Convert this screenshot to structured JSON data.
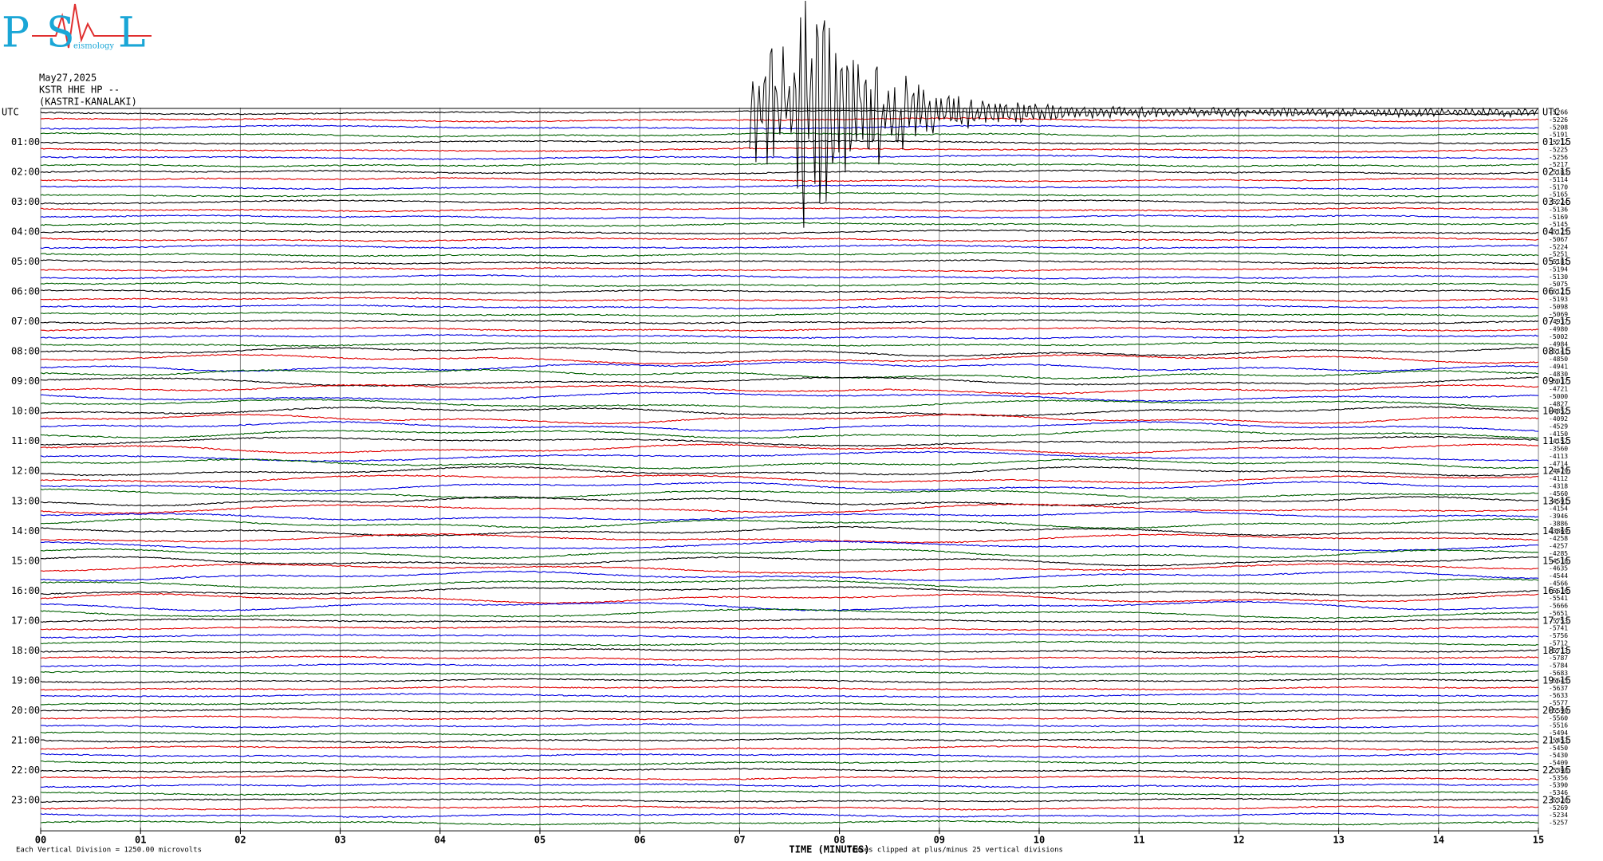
{
  "logo": {
    "letters": [
      "P",
      "S",
      "L"
    ],
    "caption": "eismology"
  },
  "header": {
    "date": "May27,2025",
    "channel": "KSTR HHE HP --",
    "station": "(KASTRI-KANALAKI)"
  },
  "chart_data": {
    "type": "helicorder",
    "xlabel": "TIME (MINUTES)",
    "scale_note": "Each Vertical Division = 1250.00 microvolts",
    "clip_note": "Traces clipped at plus/minus 25 vertical divisions",
    "xlim": [
      0,
      15
    ],
    "xticks": [
      {
        "value": 0,
        "label": "00"
      },
      {
        "value": 1,
        "label": "01"
      },
      {
        "value": 2,
        "label": "02"
      },
      {
        "value": 3,
        "label": "03"
      },
      {
        "value": 4,
        "label": "04"
      },
      {
        "value": 5,
        "label": "05"
      },
      {
        "value": 6,
        "label": "06"
      },
      {
        "value": 7,
        "label": "07"
      },
      {
        "value": 8,
        "label": "08"
      },
      {
        "value": 9,
        "label": "09"
      },
      {
        "value": 10,
        "label": "10"
      },
      {
        "value": 11,
        "label": "11"
      },
      {
        "value": 12,
        "label": "12"
      },
      {
        "value": 13,
        "label": "13"
      },
      {
        "value": 14,
        "label": "14"
      },
      {
        "value": 15,
        "label": "15"
      }
    ],
    "grid": true,
    "trace_colors": [
      "#000000",
      "#e00000",
      "#0000e0",
      "#006000"
    ],
    "left_labels": [
      "UTC",
      "01:00",
      "02:00",
      "03:00",
      "04:00",
      "05:00",
      "06:00",
      "07:00",
      "08:00",
      "09:00",
      "10:00",
      "11:00",
      "12:00",
      "13:00",
      "14:00",
      "15:00",
      "16:00",
      "17:00",
      "18:00",
      "19:00",
      "20:00",
      "21:00",
      "22:00",
      "23:00"
    ],
    "right_labels": [
      "UTC",
      "01:15",
      "02:15",
      "03:15",
      "04:15",
      "05:15",
      "06:15",
      "07:15",
      "08:15",
      "09:15",
      "10:15",
      "11:15",
      "12:15",
      "13:15",
      "14:15",
      "15:15",
      "16:15",
      "17:15",
      "18:15",
      "19:15",
      "20:15",
      "21:15",
      "22:15",
      "23:15"
    ],
    "trace_offsets": [
      -5266,
      -5226,
      -5208,
      -5191,
      -5212,
      -5225,
      -5256,
      -5217,
      -5183,
      -5114,
      -5170,
      -5165,
      -5224,
      -5136,
      -5169,
      -5145,
      -5125,
      -5067,
      -5224,
      -5251,
      -5181,
      -5194,
      -5130,
      -5075,
      -5121,
      -5193,
      -5098,
      -5069,
      -4937,
      -4980,
      -5002,
      -4984,
      -5141,
      -4850,
      -4941,
      -4830,
      -5037,
      -4721,
      -5000,
      -4827,
      -4852,
      -4092,
      -4529,
      -4150,
      -4152,
      -3560,
      -4113,
      -4714,
      -4479,
      -4112,
      -4318,
      -4560,
      -4591,
      -4154,
      -3946,
      -3886,
      -3869,
      -4258,
      -4257,
      -4285,
      -4518,
      -4635,
      -4544,
      -4566,
      -5616,
      -5541,
      -5666,
      -5651,
      -5753,
      -5741,
      -5756,
      -5712,
      -5713,
      -5787,
      -5784,
      -5683,
      -5645,
      -5637,
      -5633,
      -5577,
      -5590,
      -5560,
      -5516,
      -5494,
      -5453,
      -5450,
      -5430,
      -5409,
      -5398,
      -5356,
      -5390,
      -5346,
      -5326,
      -5269,
      -5234,
      -5257
    ]
  }
}
